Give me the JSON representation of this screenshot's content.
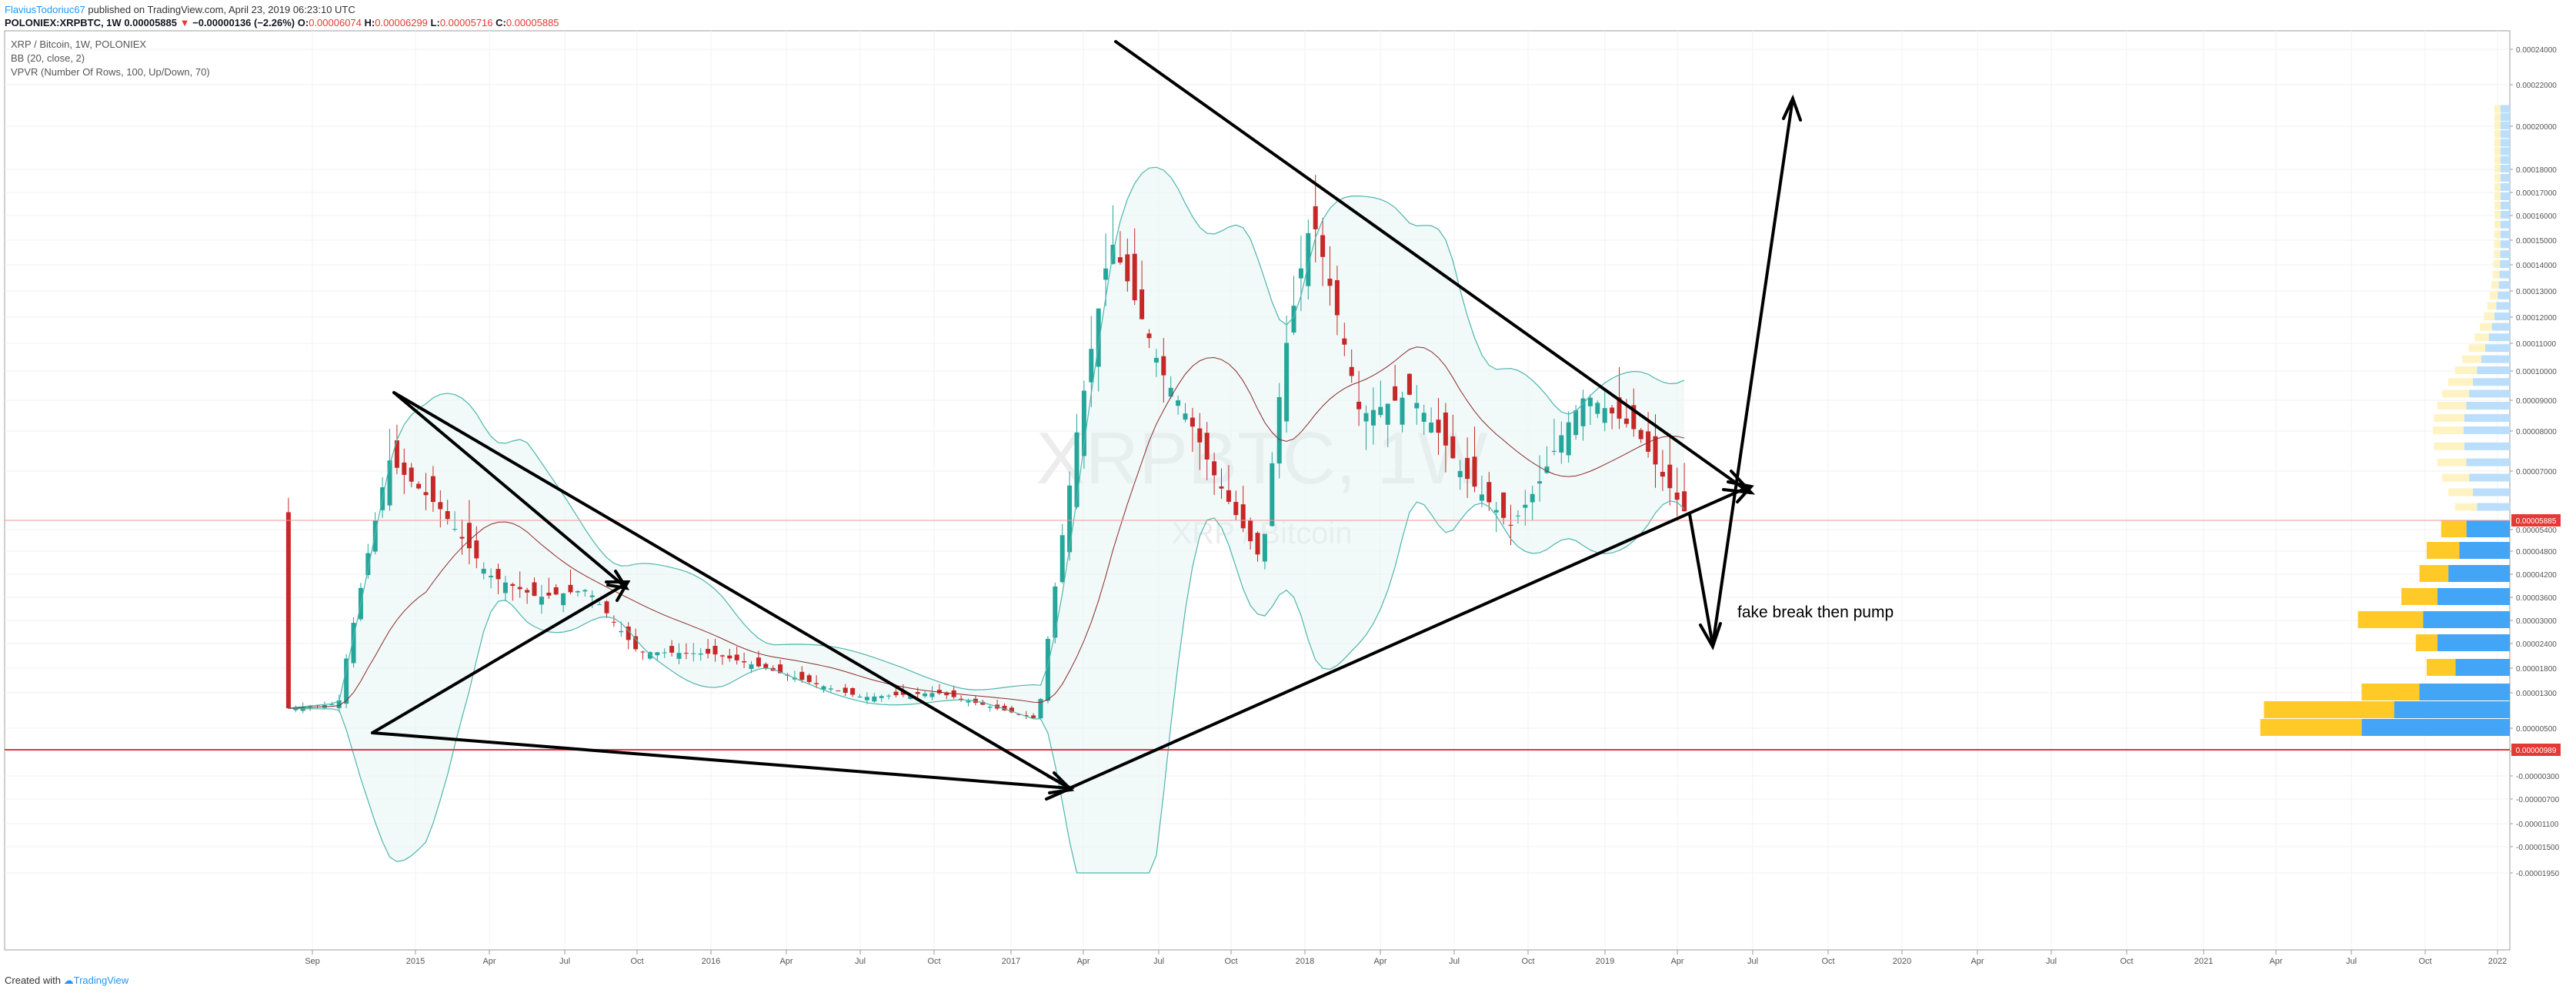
{
  "header": {
    "author": "FlaviusTodoriuc67",
    "published": " published on TradingView.com, April 23, 2019 06:23:10 UTC",
    "symbol": "POLONIEX:XRPBTC, 1W",
    "last": "0.00005885",
    "arrow": "▼",
    "change": "−0.00000136 (−2.26%)",
    "o_label": "O:",
    "o": "0.00006074",
    "h_label": "H:",
    "h": "0.00006299",
    "l_label": "L:",
    "l": "0.00005716",
    "c_label": "C:",
    "c": "0.00005885"
  },
  "legend": {
    "title": "XRP / Bitcoin, 1W, POLONIEX",
    "bb": "BB (20, close, 2)",
    "vpvr": "VPVR (Number Of Rows, 100, Up/Down, 70)"
  },
  "watermark": {
    "main": "XRPBTC, 1W",
    "sub": "XRP / Bitcoin"
  },
  "annotation": "fake break then pump",
  "footer": {
    "created": "Created with",
    "brand": "TradingView"
  },
  "colors": {
    "up": "#26a69a",
    "down": "#c62828",
    "bb_band": "#4db6ac",
    "bb_basis": "#8e2b2b",
    "vpvr_up": "#42a5f5",
    "vpvr_down": "#ffca28",
    "hline": "#e53935"
  },
  "chart_data": {
    "type": "candlestick",
    "x_ticks": [
      "Sep",
      "2015",
      "Apr",
      "Jul",
      "Oct",
      "2016",
      "Apr",
      "Jul",
      "Oct",
      "2017",
      "Apr",
      "Jul",
      "Oct",
      "2018",
      "Apr",
      "Jul",
      "Oct",
      "2019",
      "Apr",
      "Jul",
      "Oct",
      "2020",
      "Apr",
      "Jul",
      "Oct",
      "2021",
      "Apr",
      "Jul",
      "Oct",
      "2022"
    ],
    "y_ticks": [
      "0.00024000",
      "0.00022000",
      "0.00020000",
      "0.00018000",
      "0.00017000",
      "0.00016000",
      "0.00015000",
      "0.00014000",
      "0.00013000",
      "0.00012000",
      "0.00011000",
      "0.00010000",
      "0.00009000",
      "0.00008000",
      "0.00007000",
      "0.00005400",
      "0.00004800",
      "0.00004200",
      "0.00003600",
      "0.00003000",
      "0.00002400",
      "0.00001800",
      "0.00001300",
      "0.00000500",
      "0.00000100",
      "-0.00000300",
      "-0.00000700",
      "-0.00001100",
      "-0.00001500",
      "-0.00001950"
    ],
    "price_labels": {
      "current": "0.00005885",
      "support": "0.00000989"
    },
    "ylim": [
      -1.95e-05,
      0.00024
    ],
    "price_series": [
      {
        "date": "2014-08",
        "value": 9.5e-06
      },
      {
        "date": "2014-10",
        "value": 1.05e-05
      },
      {
        "date": "2014-12",
        "value": 7.3e-05
      },
      {
        "date": "2015-02",
        "value": 6e-05
      },
      {
        "date": "2015-04",
        "value": 4.2e-05
      },
      {
        "date": "2015-06",
        "value": 3.6e-05
      },
      {
        "date": "2015-08",
        "value": 3.8e-05
      },
      {
        "date": "2015-10",
        "value": 2.2e-05
      },
      {
        "date": "2016-01",
        "value": 2.15e-05
      },
      {
        "date": "2016-04",
        "value": 1.65e-05
      },
      {
        "date": "2016-07",
        "value": 1.2e-05
      },
      {
        "date": "2016-10",
        "value": 1.3e-05
      },
      {
        "date": "2017-02",
        "value": 7e-06
      },
      {
        "date": "2017-04",
        "value": 9.8e-05
      },
      {
        "date": "2017-05",
        "value": 0.00015
      },
      {
        "date": "2017-07",
        "value": 0.0001
      },
      {
        "date": "2017-09",
        "value": 7e-05
      },
      {
        "date": "2017-11",
        "value": 4.5e-05
      },
      {
        "date": "2017-12",
        "value": 0.00011
      },
      {
        "date": "2018-01",
        "value": 0.00016
      },
      {
        "date": "2018-03",
        "value": 8.5e-05
      },
      {
        "date": "2018-05",
        "value": 9.2e-05
      },
      {
        "date": "2018-07",
        "value": 7e-05
      },
      {
        "date": "2018-09",
        "value": 5.5e-05
      },
      {
        "date": "2018-10",
        "value": 6.5e-05
      },
      {
        "date": "2018-12",
        "value": 9.2e-05
      },
      {
        "date": "2019-02",
        "value": 8e-05
      },
      {
        "date": "2019-04",
        "value": 5.885e-05
      }
    ],
    "vpvr_rows": [
      {
        "price": 5e-06,
        "up": 4.1e-05,
        "down": 2.8e-05
      },
      {
        "price": 9e-06,
        "up": 3.2e-05,
        "down": 3.6e-05
      },
      {
        "price": 1.3e-05,
        "up": 2.5e-05,
        "down": 1.6e-05
      },
      {
        "price": 1.8e-05,
        "up": 1.5e-05,
        "down": 8e-06
      },
      {
        "price": 2.4e-05,
        "up": 2e-05,
        "down": 6e-06
      },
      {
        "price": 3e-05,
        "up": 2.4e-05,
        "down": 1.8e-05
      },
      {
        "price": 3.6e-05,
        "up": 2e-05,
        "down": 1e-05
      },
      {
        "price": 4.2e-05,
        "up": 1.7e-05,
        "down": 8e-06
      },
      {
        "price": 4.8e-05,
        "up": 1.4e-05,
        "down": 9e-06
      },
      {
        "price": 5.4e-05,
        "up": 1.2e-05,
        "down": 7e-06
      }
    ],
    "grid": true,
    "legend_position": "top-left"
  }
}
